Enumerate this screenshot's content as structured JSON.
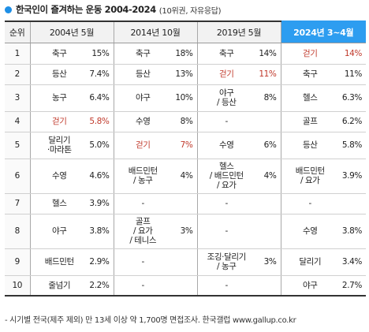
{
  "title": "한국인이 즐겨하는 운동 2004-2024",
  "subtitle": "(10위권, 자유응답)",
  "colors": {
    "accent": "#2d9df0",
    "highlight_text": "#c0392b"
  },
  "headers": {
    "rank": "순위",
    "y2004": "2004년 5월",
    "y2014": "2014년 10월",
    "y2019": "2019년 5월",
    "y2024": "2024년 3~4월"
  },
  "rows": [
    {
      "rank": "1",
      "a_item": "축구",
      "a_val": "15%",
      "b_item": "축구",
      "b_val": "18%",
      "c_item": "축구",
      "c_val": "14%",
      "d_item": "걷기",
      "d_val": "14%"
    },
    {
      "rank": "2",
      "a_item": "등산",
      "a_val": "7.4%",
      "b_item": "등산",
      "b_val": "13%",
      "c_item": "걷기",
      "c_val": "11%",
      "d_item": "축구",
      "d_val": "11%"
    },
    {
      "rank": "3",
      "a_item": "농구",
      "a_val": "6.4%",
      "b_item": "야구",
      "b_val": "10%",
      "c_item": "야구\n/ 등산",
      "c_val": "8%",
      "d_item": "헬스",
      "d_val": "6.3%"
    },
    {
      "rank": "4",
      "a_item": "걷기",
      "a_val": "5.8%",
      "b_item": "수영",
      "b_val": "8%",
      "c_item": "-",
      "c_val": "",
      "d_item": "골프",
      "d_val": "6.2%"
    },
    {
      "rank": "5",
      "a_item": "달리기\n·마라톤",
      "a_val": "5.0%",
      "b_item": "걷기",
      "b_val": "7%",
      "c_item": "수영",
      "c_val": "6%",
      "d_item": "등산",
      "d_val": "5.8%"
    },
    {
      "rank": "6",
      "a_item": "수영",
      "a_val": "4.6%",
      "b_item": "배드민턴\n/ 농구",
      "b_val": "4%",
      "c_item": "헬스\n/ 배드민턴\n/ 요가",
      "c_val": "4%",
      "d_item": "배드민턴\n/ 요가",
      "d_val": "3.9%"
    },
    {
      "rank": "7",
      "a_item": "헬스",
      "a_val": "3.9%",
      "b_item": "-",
      "b_val": "",
      "c_item": "-",
      "c_val": "",
      "d_item": "-",
      "d_val": ""
    },
    {
      "rank": "8",
      "a_item": "야구",
      "a_val": "3.8%",
      "b_item": "골프\n/ 요가\n/ 테니스",
      "b_val": "3%",
      "c_item": "-",
      "c_val": "",
      "d_item": "수영",
      "d_val": "3.8%"
    },
    {
      "rank": "9",
      "a_item": "배드민턴",
      "a_val": "2.9%",
      "b_item": "-",
      "b_val": "",
      "c_item": "조깅·달리기\n/ 농구",
      "c_val": "3%",
      "d_item": "달리기",
      "d_val": "3.4%"
    },
    {
      "rank": "10",
      "a_item": "줄넘기",
      "a_val": "2.2%",
      "b_item": "-",
      "b_val": "",
      "c_item": "-",
      "c_val": "",
      "d_item": "야구",
      "d_val": "2.7%"
    }
  ],
  "footnote": "- 시기별 전국(제주 제외) 만 13세 이상 약 1,700명 면접조사. 한국갤럽 www.gallup.co.kr"
}
